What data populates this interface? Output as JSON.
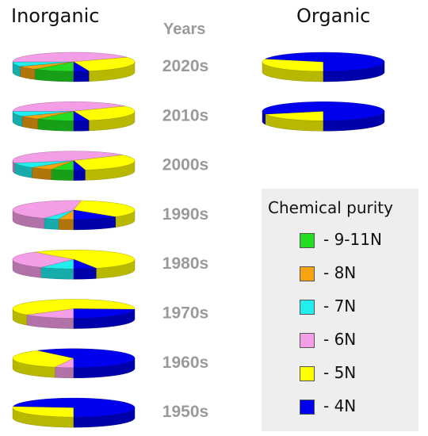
{
  "headings": {
    "inorganic": "Inorganic",
    "organic": "Organic",
    "years": "Years"
  },
  "legend": {
    "title": "Chemical purity",
    "items": [
      {
        "key": "9-11N",
        "label": "- 9-11N",
        "color": "#22dd22"
      },
      {
        "key": "8N",
        "label": "- 8N",
        "color": "#f5a30f"
      },
      {
        "key": "7N",
        "label": "- 7N",
        "color": "#22eeee"
      },
      {
        "key": "6N",
        "label": "- 6N",
        "color": "#f59ee8"
      },
      {
        "key": "5N",
        "label": "- 5N",
        "color": "#ffff00"
      },
      {
        "key": "4N",
        "label": "- 4N",
        "color": "#0000ee"
      }
    ]
  },
  "chart_data": {
    "type": "pie",
    "style": "3d-tilted",
    "series_keys": [
      "9-11N",
      "8N",
      "7N",
      "6N",
      "5N",
      "4N"
    ],
    "decades": [
      "2020s",
      "2010s",
      "2000s",
      "1990s",
      "1980s",
      "1970s",
      "1960s",
      "1950s"
    ],
    "inorganic": [
      {
        "decade": "2020s",
        "values": {
          "9-11N": 11,
          "8N": 6,
          "7N": 8,
          "6N": 42,
          "5N": 29,
          "4N": 4
        }
      },
      {
        "decade": "2010s",
        "values": {
          "9-11N": 10,
          "8N": 6,
          "7N": 9,
          "6N": 41,
          "5N": 30,
          "4N": 4
        }
      },
      {
        "decade": "2000s",
        "values": {
          "9-11N": 6,
          "8N": 6,
          "7N": 9,
          "6N": 44,
          "5N": 32,
          "4N": 3
        }
      },
      {
        "decade": "1990s",
        "values": {
          "9-11N": 0,
          "8N": 4,
          "7N": 4,
          "6N": 44,
          "5N": 36,
          "4N": 12
        }
      },
      {
        "decade": "1980s",
        "values": {
          "9-11N": 0,
          "8N": 0,
          "7N": 9,
          "6N": 30,
          "5N": 55,
          "4N": 6
        }
      },
      {
        "decade": "1970s",
        "values": {
          "9-11N": 0,
          "8N": 0,
          "7N": 0,
          "6N": 14,
          "5N": 62,
          "4N": 24
        }
      },
      {
        "decade": "1960s",
        "values": {
          "9-11N": 0,
          "8N": 0,
          "7N": 0,
          "6N": 5,
          "5N": 35,
          "4N": 60
        }
      },
      {
        "decade": "1950s",
        "values": {
          "9-11N": 0,
          "8N": 0,
          "7N": 0,
          "6N": 0,
          "5N": 27,
          "4N": 73
        }
      }
    ],
    "organic": [
      {
        "decade": "2020s",
        "values": {
          "9-11N": 0,
          "8N": 0,
          "7N": 0,
          "6N": 0,
          "5N": 30,
          "4N": 70
        }
      },
      {
        "decade": "2010s",
        "values": {
          "9-11N": 0,
          "8N": 0,
          "7N": 0,
          "6N": 0,
          "5N": 20,
          "4N": 80
        }
      }
    ]
  }
}
